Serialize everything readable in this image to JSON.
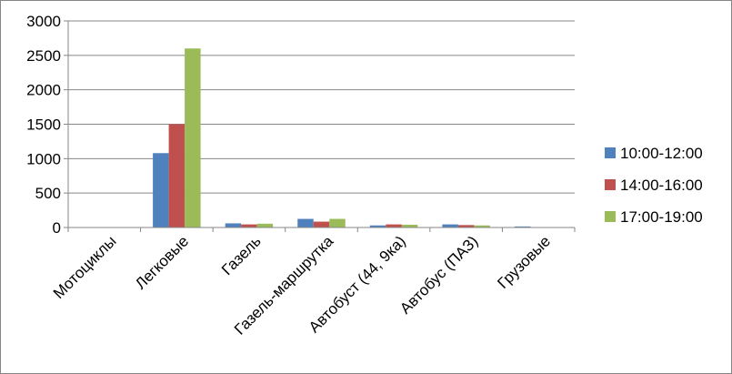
{
  "chart_data": {
    "type": "bar",
    "title": "",
    "xlabel": "",
    "ylabel": "",
    "ylim": [
      0,
      3000
    ],
    "yticks": [
      0,
      500,
      1000,
      1500,
      2000,
      2500,
      3000
    ],
    "grid": true,
    "legend_position": "right",
    "categories": [
      "Мотоциклы",
      "Легковые",
      "Газель",
      "Газель-маршрутка",
      "Автобуст (44, 9ка)",
      "Автобус (ПАЗ)",
      "Грузовые"
    ],
    "series": [
      {
        "name": "10:00-12:00",
        "color": "#4f81bd",
        "values": [
          0,
          1080,
          60,
          125,
          30,
          45,
          15
        ]
      },
      {
        "name": "14:00-16:00",
        "color": "#c0504d",
        "values": [
          0,
          1500,
          45,
          85,
          45,
          35,
          5
        ]
      },
      {
        "name": "17:00-19:00",
        "color": "#9bbb59",
        "values": [
          0,
          2600,
          55,
          125,
          40,
          30,
          5
        ]
      }
    ]
  }
}
